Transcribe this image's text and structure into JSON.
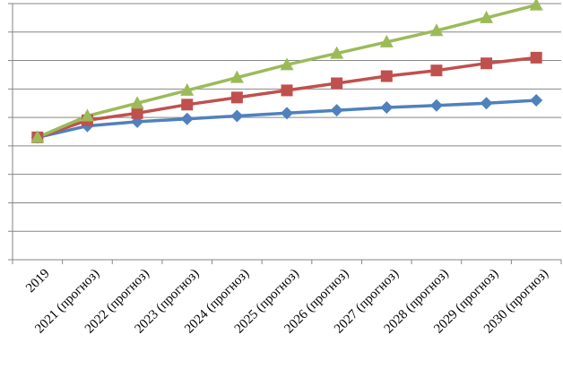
{
  "chart_data": {
    "type": "line",
    "categories": [
      "2019",
      "2021 (прогноз)",
      "2022 (прогноз)",
      "2023 (прогноз)",
      "2024 (прогноз)",
      "2025 (прогноз)",
      "2026 (прогноз)",
      "2027 (прогноз)",
      "2028 (прогноз)",
      "2029 (прогноз)",
      "2030 (прогноз)"
    ],
    "ylim": [
      0,
      9
    ],
    "y_gridlines": 9,
    "grid": true,
    "y_tick_labels_visible": false,
    "legend": "none",
    "series": [
      {
        "color": "#4F81BD",
        "marker": "diamond",
        "values": [
          4.3,
          4.7,
          4.85,
          4.95,
          5.05,
          5.15,
          5.25,
          5.35,
          5.42,
          5.5,
          5.6
        ]
      },
      {
        "color": "#C0504D",
        "marker": "square",
        "values": [
          4.3,
          4.9,
          5.15,
          5.45,
          5.7,
          5.95,
          6.2,
          6.45,
          6.65,
          6.9,
          7.1
        ]
      },
      {
        "color": "#9BBB59",
        "marker": "triangle",
        "values": [
          4.3,
          5.05,
          5.5,
          5.95,
          6.4,
          6.85,
          7.25,
          7.65,
          8.05,
          8.5,
          8.95
        ]
      }
    ]
  }
}
